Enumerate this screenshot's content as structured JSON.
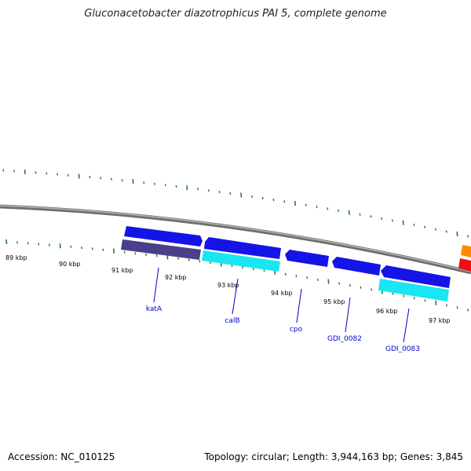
{
  "title": "Gluconacetobacter diazotrophicus PAI 5, complete genome",
  "footer": {
    "accession": "Accession: NC_010125",
    "summary": "Topology: circular; Length: 3,944,163 bp; Genes: 3,845"
  },
  "colors": {
    "backbone": "#888888",
    "tick": "#2a7f2a",
    "forward_gene": "#1414e6",
    "reverse_gene_slate": "#4a3f8a",
    "reverse_gene_cyan": "#19e6f0",
    "label_text": "#0000cc",
    "orange_feature": "#ff8c00",
    "red_feature": "#ee1111"
  },
  "ticks": [
    {
      "label": "89 kbp"
    },
    {
      "label": "90 kbp"
    },
    {
      "label": "91 kbp"
    },
    {
      "label": "92 kbp"
    },
    {
      "label": "93 kbp"
    },
    {
      "label": "94 kbp"
    },
    {
      "label": "95 kbp"
    },
    {
      "label": "96 kbp"
    },
    {
      "label": "97 kbp"
    }
  ],
  "genes": [
    {
      "name": "katA",
      "strand": "forward"
    },
    {
      "name": "calB",
      "strand": "forward"
    },
    {
      "name": "cpo",
      "strand": "forward"
    },
    {
      "name": "GDI_0082",
      "strand": "forward"
    },
    {
      "name": "GDI_0083",
      "strand": "forward"
    }
  ]
}
